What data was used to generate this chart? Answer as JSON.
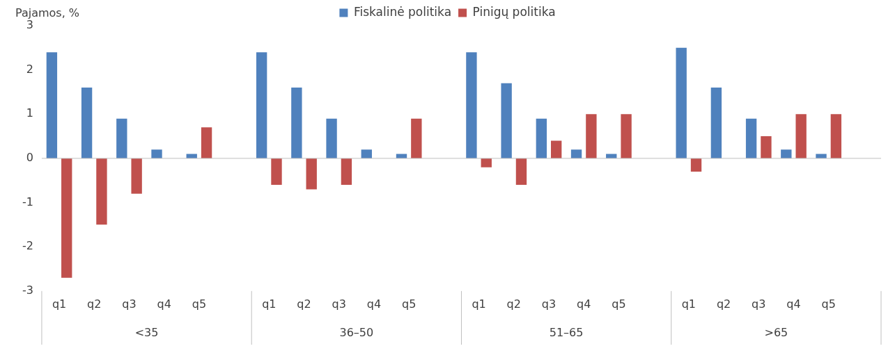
{
  "chart_data": {
    "type": "bar",
    "ylabel": "Pajamos, %",
    "legend": "top",
    "categories": [
      "q1",
      "q2",
      "q3",
      "q4",
      "q5",
      null,
      "q1",
      "q2",
      "q3",
      "q4",
      "q5",
      null,
      "q1",
      "q2",
      "q3",
      "q4",
      "q5",
      null,
      "q1",
      "q2",
      "q3",
      "q4",
      "q5",
      null
    ],
    "series": [
      {
        "name": "Fiskalinė politika",
        "color": "#4f81bd",
        "values": [
          2.4,
          1.6,
          0.9,
          0.2,
          0.1,
          null,
          2.4,
          1.6,
          0.9,
          0.2,
          0.1,
          null,
          2.4,
          1.7,
          0.9,
          0.2,
          0.1,
          null,
          2.5,
          1.6,
          0.9,
          0.2,
          0.1,
          null
        ]
      },
      {
        "name": "Pinigų politika",
        "color": "#c0504d",
        "values": [
          -2.7,
          -1.5,
          -0.8,
          0,
          0.7,
          null,
          -0.6,
          -0.7,
          -0.6,
          0,
          0.9,
          null,
          -0.2,
          -0.6,
          0.4,
          1.0,
          1.0,
          null,
          -0.3,
          0,
          0.5,
          1.0,
          1.0,
          null
        ]
      }
    ],
    "ref_lines": [
      {
        "axis": "y",
        "value": 0,
        "color": "#bfbfbf"
      }
    ],
    "ylim": [
      -3,
      3
    ],
    "yticks": [
      -3,
      -2,
      -1,
      0,
      1,
      2,
      3
    ],
    "grid": false,
    "annotations": [
      "<35",
      "36–50",
      "51–65",
      ">65"
    ]
  }
}
